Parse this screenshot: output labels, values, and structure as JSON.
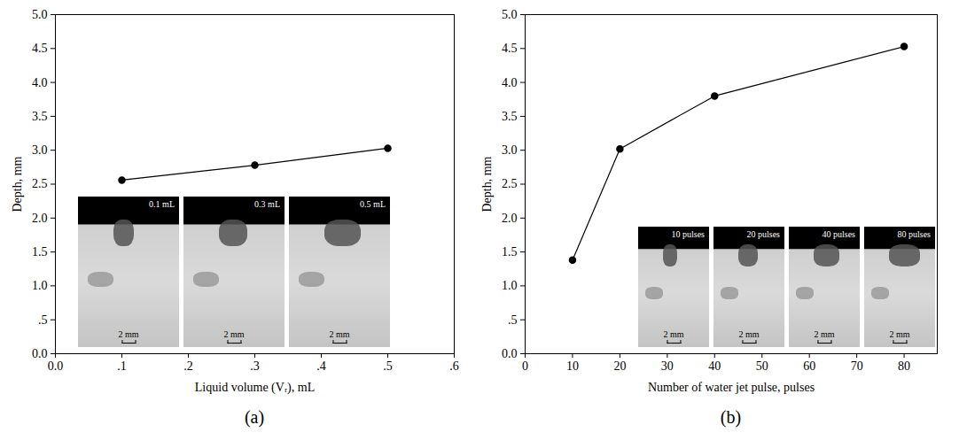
{
  "chart_data": [
    {
      "type": "line",
      "title": "(a)",
      "x_label": "Liquid volume (Vᵣ), mL",
      "y_label": "Depth, mm",
      "x": [
        0.1,
        0.3,
        0.5
      ],
      "values": [
        2.56,
        2.78,
        3.03
      ],
      "color": "#000000",
      "marker": "circle",
      "xlim": [
        0,
        0.6
      ],
      "xticks": [
        {
          "value": 0,
          "label": "0.0"
        },
        {
          "value": 0.1,
          "label": ".1"
        },
        {
          "value": 0.2,
          "label": ".2"
        },
        {
          "value": 0.3,
          "label": ".3"
        },
        {
          "value": 0.4,
          "label": ".4"
        },
        {
          "value": 0.5,
          "label": ".5"
        },
        {
          "value": 0.6,
          "label": ".6"
        }
      ],
      "ylim": [
        0,
        5
      ],
      "yticks": [
        {
          "value": 0,
          "label": "0.0"
        },
        {
          "value": 0.5,
          "label": ".5"
        },
        {
          "value": 1,
          "label": "1.0"
        },
        {
          "value": 1.5,
          "label": "1.5"
        },
        {
          "value": 2,
          "label": "2.0"
        },
        {
          "value": 2.5,
          "label": "2.5"
        },
        {
          "value": 3,
          "label": "3.0"
        },
        {
          "value": 3.5,
          "label": "3.5"
        },
        {
          "value": 4,
          "label": "4.0"
        },
        {
          "value": 4.5,
          "label": "4.5"
        },
        {
          "value": 5,
          "label": "5.0"
        }
      ],
      "insets": [
        {
          "label": "0.1 mL",
          "scale": "2 mm"
        },
        {
          "label": "0.3 mL",
          "scale": "2 mm"
        },
        {
          "label": "0.5 mL",
          "scale": "2 mm"
        }
      ]
    },
    {
      "type": "line",
      "title": "(b)",
      "x_label": "Number of water jet pulse, pulses",
      "y_label": "Depth, mm",
      "x": [
        10,
        20,
        40,
        80
      ],
      "values": [
        1.38,
        3.02,
        3.8,
        4.53
      ],
      "color": "#000000",
      "marker": "circle",
      "xlim": [
        0,
        87
      ],
      "xticks": [
        0,
        10,
        20,
        30,
        40,
        50,
        60,
        70,
        80
      ],
      "ylim": [
        0,
        5
      ],
      "yticks": [
        {
          "value": 0,
          "label": "0.0"
        },
        {
          "value": 0.5,
          "label": ".5"
        },
        {
          "value": 1,
          "label": "1.0"
        },
        {
          "value": 1.5,
          "label": "1.5"
        },
        {
          "value": 2,
          "label": "2.0"
        },
        {
          "value": 2.5,
          "label": "2.5"
        },
        {
          "value": 3,
          "label": "3.0"
        },
        {
          "value": 3.5,
          "label": "3.5"
        },
        {
          "value": 4,
          "label": "4.0"
        },
        {
          "value": 4.5,
          "label": "4.5"
        },
        {
          "value": 5,
          "label": "5.0"
        }
      ],
      "insets": [
        {
          "label": "10 pulses",
          "scale": "2 mm"
        },
        {
          "label": "20 pulses",
          "scale": "2 mm"
        },
        {
          "label": "40 pulses",
          "scale": "2 mm"
        },
        {
          "label": "80 pulses",
          "scale": "2 mm"
        }
      ]
    }
  ]
}
